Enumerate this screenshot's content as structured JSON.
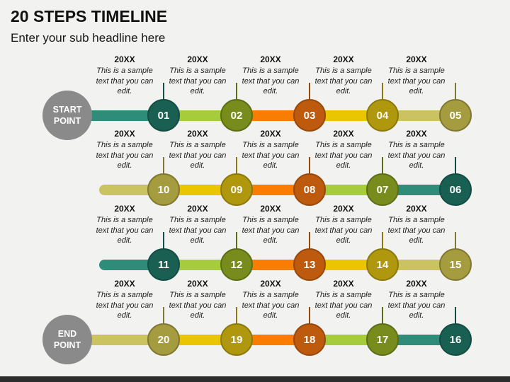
{
  "slide": {
    "title": "20 STEPS TIMELINE",
    "subtitle": "Enter your sub headline here"
  },
  "palette": {
    "background": "#F2F2F1",
    "footer_bar": "#2D2D2D",
    "endpoint_gray": "#8A8A8A",
    "segments": {
      "teal": "#2E8C78",
      "ltgreen": "#A6CB3C",
      "orange": "#FA7D01",
      "yellow": "#E9C502",
      "khaki": "#CBC261"
    },
    "circles": {
      "teal": "#1A6052",
      "olive": "#788C1E",
      "rust": "#BE5A0E",
      "gold": "#B0980E",
      "khaki": "#A59C40"
    },
    "rings": {
      "teal": "#124E43",
      "olive": "#5C6E14",
      "rust": "#99480B",
      "gold": "#8C790B",
      "khaki": "#807831"
    }
  },
  "timeline": {
    "year_label": "20XX",
    "sample_text": "This is a sample text that you can edit.",
    "rows": [
      {
        "endpoint_label": "START POINT",
        "nodes": [
          {
            "number": "01",
            "segment": "teal",
            "circle": "teal"
          },
          {
            "number": "02",
            "segment": "ltgreen",
            "circle": "olive"
          },
          {
            "number": "03",
            "segment": "orange",
            "circle": "rust"
          },
          {
            "number": "04",
            "segment": "yellow",
            "circle": "gold"
          },
          {
            "number": "05",
            "segment": "khaki",
            "circle": "khaki"
          }
        ]
      },
      {
        "nodes": [
          {
            "number": "10",
            "segment": "khaki",
            "circle": "khaki"
          },
          {
            "number": "09",
            "segment": "yellow",
            "circle": "gold"
          },
          {
            "number": "08",
            "segment": "orange",
            "circle": "rust"
          },
          {
            "number": "07",
            "segment": "ltgreen",
            "circle": "olive"
          },
          {
            "number": "06",
            "segment": "teal",
            "circle": "teal"
          }
        ]
      },
      {
        "nodes": [
          {
            "number": "11",
            "segment": "teal",
            "circle": "teal"
          },
          {
            "number": "12",
            "segment": "ltgreen",
            "circle": "olive"
          },
          {
            "number": "13",
            "segment": "orange",
            "circle": "rust"
          },
          {
            "number": "14",
            "segment": "yellow",
            "circle": "gold"
          },
          {
            "number": "15",
            "segment": "khaki",
            "circle": "khaki"
          }
        ]
      },
      {
        "endpoint_label": "END POINT",
        "nodes": [
          {
            "number": "20",
            "segment": "khaki",
            "circle": "khaki"
          },
          {
            "number": "19",
            "segment": "yellow",
            "circle": "gold"
          },
          {
            "number": "18",
            "segment": "orange",
            "circle": "rust"
          },
          {
            "number": "17",
            "segment": "ltgreen",
            "circle": "olive"
          },
          {
            "number": "16",
            "segment": "teal",
            "circle": "teal"
          }
        ]
      }
    ]
  }
}
